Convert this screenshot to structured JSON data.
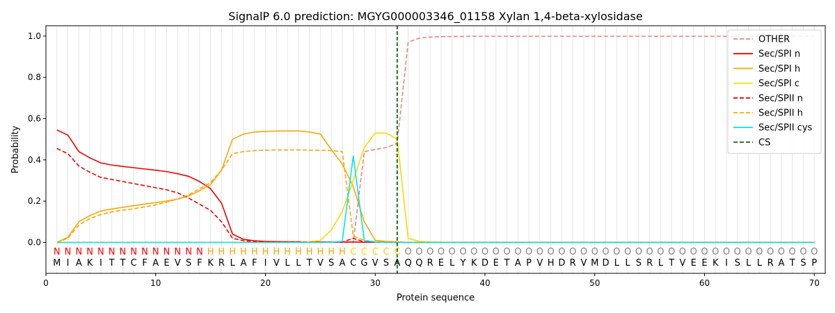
{
  "chart_data": {
    "type": "line",
    "title": "SignalP 6.0 prediction: MGYG000003346_01158 Xylan 1,4-beta-xylosidase",
    "xlabel": "Protein sequence",
    "ylabel": "Probability",
    "xlim": [
      0,
      71
    ],
    "ylim": [
      -0.15,
      1.05
    ],
    "xticks": [
      0,
      10,
      20,
      30,
      40,
      50,
      60,
      70
    ],
    "yticks": [
      0.0,
      0.2,
      0.4,
      0.6,
      0.8,
      1.0
    ],
    "ytick_labels": [
      "0.0",
      "0.2",
      "0.4",
      "0.6",
      "0.8",
      "1.0"
    ],
    "grid": "vertical lines at each residue",
    "legend_position": "top-right",
    "sequence": [
      "M",
      "I",
      "A",
      "K",
      "I",
      "T",
      "T",
      "C",
      "F",
      "A",
      "E",
      "V",
      "S",
      "F",
      "K",
      "R",
      "L",
      "A",
      "F",
      "I",
      "V",
      "L",
      "L",
      "T",
      "V",
      "S",
      "A",
      "C",
      "G",
      "V",
      "S",
      "A",
      "Q",
      "Q",
      "R",
      "E",
      "L",
      "Y",
      "K",
      "D",
      "E",
      "T",
      "A",
      "P",
      "V",
      "H",
      "D",
      "R",
      "V",
      "M",
      "D",
      "L",
      "L",
      "S",
      "R",
      "L",
      "T",
      "V",
      "E",
      "E",
      "K",
      "I",
      "S",
      "L",
      "L",
      "R",
      "A",
      "T",
      "S",
      "P"
    ],
    "region_labels": [
      "N",
      "N",
      "N",
      "N",
      "N",
      "N",
      "N",
      "N",
      "N",
      "N",
      "N",
      "N",
      "N",
      "N",
      "H",
      "H",
      "H",
      "H",
      "H",
      "H",
      "H",
      "H",
      "H",
      "H",
      "H",
      "H",
      "H",
      "C",
      "C",
      "C",
      "C",
      "C",
      "O",
      "O",
      "O",
      "O",
      "O",
      "O",
      "O",
      "O",
      "O",
      "O",
      "O",
      "O",
      "O",
      "O",
      "O",
      "O",
      "O",
      "O",
      "O",
      "O",
      "O",
      "O",
      "O",
      "O",
      "O",
      "O",
      "O",
      "O",
      "O",
      "O",
      "O",
      "O",
      "O",
      "O",
      "O",
      "O",
      "O",
      "O"
    ],
    "region_colors": {
      "N": "#ff0000",
      "H": "#ffa500",
      "C": "#ffd700",
      "O": "#808080"
    },
    "cleavage_site": 32,
    "series": [
      {
        "name": "OTHER",
        "color": "#f08080",
        "dash": "dashed",
        "values": [
          0.0,
          0.0,
          0.0,
          0.0,
          0.0,
          0.0,
          0.0,
          0.0,
          0.0,
          0.0,
          0.0,
          0.0,
          0.0,
          0.0,
          0.0,
          0.0,
          0.0,
          0.0,
          0.0,
          0.0,
          0.0,
          0.0,
          0.0,
          0.0,
          0.0,
          0.0,
          0.0,
          0.0,
          0.44,
          0.45,
          0.46,
          0.48,
          0.97,
          0.99,
          0.995,
          0.997,
          0.998,
          0.998,
          0.999,
          0.999,
          0.999,
          0.999,
          0.999,
          0.999,
          0.999,
          0.999,
          0.999,
          0.999,
          0.999,
          0.999,
          0.999,
          0.999,
          0.999,
          0.999,
          0.999,
          0.999,
          0.999,
          0.999,
          0.999,
          0.999,
          0.999,
          0.999,
          0.999,
          0.999,
          0.999,
          0.999,
          0.999,
          0.999,
          0.999,
          0.999
        ]
      },
      {
        "name": "Sec/SPI n",
        "color": "#ee0000",
        "dash": "solid",
        "values": [
          0.545,
          0.52,
          0.44,
          0.41,
          0.385,
          0.375,
          0.368,
          0.362,
          0.356,
          0.35,
          0.343,
          0.333,
          0.32,
          0.295,
          0.26,
          0.19,
          0.04,
          0.015,
          0.008,
          0.005,
          0.004,
          0.003,
          0.003,
          0.002,
          0.002,
          0.002,
          0.002,
          0.002,
          0.001,
          0.001,
          0.001,
          0.0,
          0.0,
          0.0,
          0.0,
          0.0,
          0.0,
          0.0,
          0.0,
          0.0,
          0.0,
          0.0,
          0.0,
          0.0,
          0.0,
          0.0,
          0.0,
          0.0,
          0.0,
          0.0,
          0.0,
          0.0,
          0.0,
          0.0,
          0.0,
          0.0,
          0.0,
          0.0,
          0.0,
          0.0,
          0.0,
          0.0,
          0.0,
          0.0,
          0.0,
          0.0,
          0.0,
          0.0,
          0.0,
          0.0
        ]
      },
      {
        "name": "Sec/SPI h",
        "color": "#ffa500",
        "dash": "solid",
        "values": [
          0.0,
          0.025,
          0.1,
          0.13,
          0.152,
          0.162,
          0.17,
          0.178,
          0.186,
          0.193,
          0.2,
          0.21,
          0.225,
          0.25,
          0.28,
          0.35,
          0.5,
          0.525,
          0.535,
          0.538,
          0.54,
          0.54,
          0.54,
          0.535,
          0.525,
          0.45,
          0.38,
          0.27,
          0.1,
          0.01,
          0.005,
          0.003,
          0.0,
          0.0,
          0.0,
          0.0,
          0.0,
          0.0,
          0.0,
          0.0,
          0.0,
          0.0,
          0.0,
          0.0,
          0.0,
          0.0,
          0.0,
          0.0,
          0.0,
          0.0,
          0.0,
          0.0,
          0.0,
          0.0,
          0.0,
          0.0,
          0.0,
          0.0,
          0.0,
          0.0,
          0.0,
          0.0,
          0.0,
          0.0,
          0.0,
          0.0,
          0.0,
          0.0,
          0.0,
          0.0
        ]
      },
      {
        "name": "Sec/SPI c",
        "color": "#ffd700",
        "dash": "solid",
        "values": [
          0.0,
          0.0,
          0.0,
          0.0,
          0.0,
          0.0,
          0.0,
          0.0,
          0.0,
          0.0,
          0.0,
          0.0,
          0.0,
          0.0,
          0.0,
          0.0,
          0.0,
          0.0,
          0.0,
          0.0,
          0.0,
          0.0,
          0.001,
          0.003,
          0.01,
          0.06,
          0.15,
          0.3,
          0.46,
          0.53,
          0.53,
          0.5,
          0.02,
          0.005,
          0.002,
          0.001,
          0.0,
          0.0,
          0.0,
          0.0,
          0.0,
          0.0,
          0.0,
          0.0,
          0.0,
          0.0,
          0.0,
          0.0,
          0.0,
          0.0,
          0.0,
          0.0,
          0.0,
          0.0,
          0.0,
          0.0,
          0.0,
          0.0,
          0.0,
          0.0,
          0.0,
          0.0,
          0.0,
          0.0,
          0.0,
          0.0,
          0.0,
          0.0,
          0.0,
          0.0
        ]
      },
      {
        "name": "Sec/SPII n",
        "color": "#ee0000",
        "dash": "dashed",
        "values": [
          0.455,
          0.43,
          0.37,
          0.34,
          0.315,
          0.305,
          0.295,
          0.285,
          0.275,
          0.265,
          0.255,
          0.24,
          0.215,
          0.185,
          0.155,
          0.1,
          0.02,
          0.008,
          0.004,
          0.003,
          0.002,
          0.002,
          0.002,
          0.001,
          0.001,
          0.001,
          0.001,
          0.02,
          0.002,
          0.0,
          0.0,
          0.0,
          0.0,
          0.0,
          0.0,
          0.0,
          0.0,
          0.0,
          0.0,
          0.0,
          0.0,
          0.0,
          0.0,
          0.0,
          0.0,
          0.0,
          0.0,
          0.0,
          0.0,
          0.0,
          0.0,
          0.0,
          0.0,
          0.0,
          0.0,
          0.0,
          0.0,
          0.0,
          0.0,
          0.0,
          0.0,
          0.0,
          0.0,
          0.0,
          0.0,
          0.0,
          0.0,
          0.0,
          0.0,
          0.0
        ]
      },
      {
        "name": "Sec/SPII h",
        "color": "#ffa500",
        "dash": "dashed",
        "values": [
          0.0,
          0.02,
          0.085,
          0.115,
          0.135,
          0.148,
          0.156,
          0.163,
          0.172,
          0.182,
          0.195,
          0.21,
          0.23,
          0.26,
          0.29,
          0.35,
          0.43,
          0.44,
          0.445,
          0.447,
          0.448,
          0.448,
          0.448,
          0.447,
          0.446,
          0.445,
          0.44,
          0.03,
          0.01,
          0.003,
          0.002,
          0.001,
          0.0,
          0.0,
          0.0,
          0.0,
          0.0,
          0.0,
          0.0,
          0.0,
          0.0,
          0.0,
          0.0,
          0.0,
          0.0,
          0.0,
          0.0,
          0.0,
          0.0,
          0.0,
          0.0,
          0.0,
          0.0,
          0.0,
          0.0,
          0.0,
          0.0,
          0.0,
          0.0,
          0.0,
          0.0,
          0.0,
          0.0,
          0.0,
          0.0,
          0.0,
          0.0,
          0.0,
          0.0,
          0.0
        ]
      },
      {
        "name": "Sec/SPII cys",
        "color": "#00e5ee",
        "dash": "solid",
        "values": [
          0.0,
          0.0,
          0.0,
          0.0,
          0.0,
          0.0,
          0.0,
          0.0,
          0.0,
          0.0,
          0.0,
          0.0,
          0.0,
          0.0,
          0.0,
          0.0,
          0.0,
          0.0,
          0.0,
          0.0,
          0.0,
          0.0,
          0.0,
          0.0,
          0.0,
          0.001,
          0.005,
          0.42,
          0.01,
          0.002,
          0.0,
          0.0,
          0.0,
          0.0,
          0.0,
          0.0,
          0.0,
          0.0,
          0.0,
          0.0,
          0.0,
          0.0,
          0.0,
          0.0,
          0.0,
          0.0,
          0.0,
          0.0,
          0.0,
          0.0,
          0.0,
          0.0,
          0.0,
          0.0,
          0.0,
          0.0,
          0.0,
          0.0,
          0.0,
          0.0,
          0.0,
          0.0,
          0.0,
          0.0,
          0.0,
          0.0,
          0.0,
          0.0,
          0.0,
          0.0
        ]
      }
    ],
    "legend": [
      {
        "label": "OTHER",
        "color": "#f08080",
        "dash": "dashed"
      },
      {
        "label": "Sec/SPI n",
        "color": "#ee0000",
        "dash": "solid"
      },
      {
        "label": "Sec/SPI h",
        "color": "#ffa500",
        "dash": "solid"
      },
      {
        "label": "Sec/SPI c",
        "color": "#ffd700",
        "dash": "solid"
      },
      {
        "label": "Sec/SPII n",
        "color": "#ee0000",
        "dash": "dashed"
      },
      {
        "label": "Sec/SPII h",
        "color": "#ffa500",
        "dash": "dashed"
      },
      {
        "label": "Sec/SPII cys",
        "color": "#00e5ee",
        "dash": "solid"
      },
      {
        "label": "CS",
        "color": "#006400",
        "dash": "dashed"
      }
    ]
  }
}
